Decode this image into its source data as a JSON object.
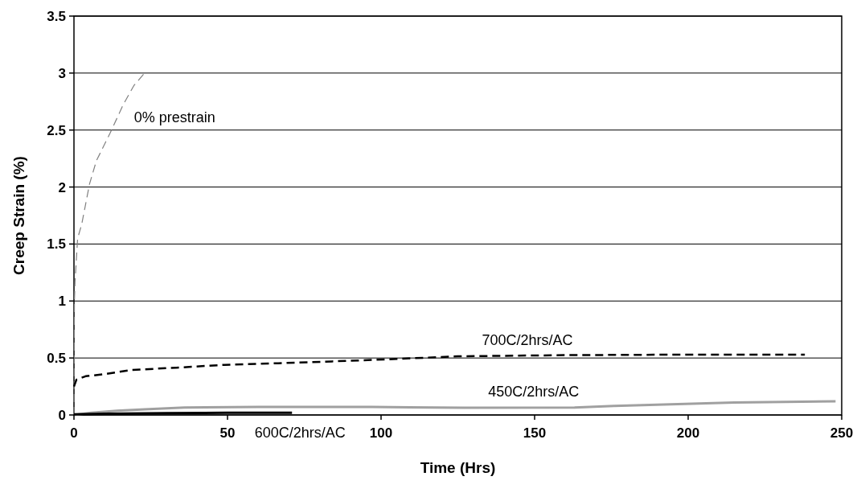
{
  "chart_data": {
    "type": "line",
    "xlabel": "Time (Hrs)",
    "ylabel": "Creep Strain (%)",
    "xlim": [
      0,
      250
    ],
    "xticks": [
      0,
      50,
      100,
      150,
      200,
      250
    ],
    "ylim": [
      0,
      3.5
    ],
    "yticks": [
      0,
      0.5,
      1,
      1.5,
      2,
      2.5,
      3,
      3.5
    ],
    "grid": "y",
    "legend": false,
    "series": [
      {
        "name": "0% prestrain",
        "color": "#808080",
        "line_style": "dashed",
        "x": [
          0,
          0.1,
          0.15,
          0.35,
          1.2,
          2.5,
          3.8,
          5.1,
          7.3,
          11.7,
          16,
          19.5,
          23
        ],
        "values": [
          0,
          0.6,
          1.0,
          1.17,
          1.55,
          1.67,
          1.85,
          2.03,
          2.23,
          2.47,
          2.72,
          2.89,
          3.0
        ]
      },
      {
        "name": "700C/2hrs/AC",
        "color": "#000000",
        "line_style": "dashed",
        "x": [
          0,
          0.8,
          3.8,
          10.5,
          18.6,
          33.4,
          49,
          66.5,
          84,
          101,
          125,
          160,
          200,
          238
        ],
        "values": [
          0.25,
          0.31,
          0.34,
          0.36,
          0.395,
          0.415,
          0.44,
          0.454,
          0.47,
          0.487,
          0.515,
          0.525,
          0.53,
          0.53
        ]
      },
      {
        "name": "450C/2hrs/AC",
        "color": "#a0a0a0",
        "line_style": "solid",
        "x": [
          0,
          5.6,
          14,
          23,
          36,
          60,
          97,
          127,
          163,
          176,
          215,
          248
        ],
        "values": [
          0,
          0.02,
          0.037,
          0.05,
          0.066,
          0.07,
          0.07,
          0.063,
          0.066,
          0.08,
          0.11,
          0.12
        ]
      },
      {
        "name": "600C/2hrs/AC",
        "color": "#000000",
        "line_style": "solid",
        "x": [
          0,
          10,
          30,
          50,
          71
        ],
        "values": [
          0.005,
          0.01,
          0.015,
          0.02,
          0.02
        ]
      }
    ]
  }
}
